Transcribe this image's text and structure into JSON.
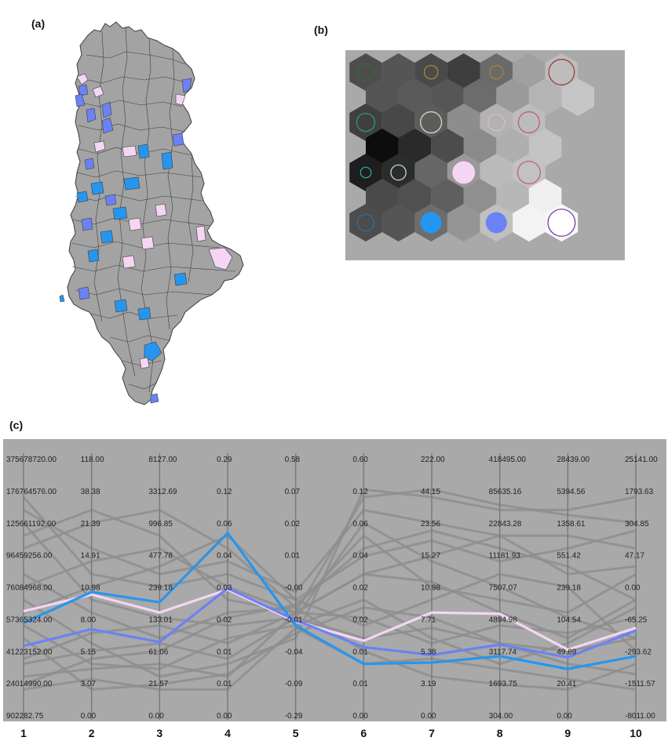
{
  "panels": {
    "a": {
      "label": "(a)"
    },
    "b": {
      "label": "(b)"
    },
    "c": {
      "label": "(c)"
    }
  },
  "colors": {
    "map_fill": "#a3a3a3",
    "map_stroke": "#3d3d3d",
    "highlight_blue": "#6b82f5",
    "highlight_cyan": "#2596f0",
    "highlight_pink": "#f4d6f4",
    "pc_background": "#a9a9a9",
    "pc_gray_line": "#8e8e8e",
    "som_background": "#a9a9a9"
  },
  "som": {
    "hexes": [
      {
        "r": 0,
        "c": 0,
        "shade": "#4d4d4d",
        "ring": "#2e6b3c",
        "ring_size": 0.55,
        "fill": null
      },
      {
        "r": 0,
        "c": 1,
        "shade": "#555555",
        "ring": null,
        "ring_size": 0,
        "fill": null
      },
      {
        "r": 0,
        "c": 2,
        "shade": "#4a4a4a",
        "ring": "#a08a3b",
        "ring_size": 0.45,
        "fill": null
      },
      {
        "r": 0,
        "c": 3,
        "shade": "#3e3e3e",
        "ring": null,
        "ring_size": 0,
        "fill": null
      },
      {
        "r": 0,
        "c": 4,
        "shade": "#6a6a6a",
        "ring": "#b07a3a",
        "ring_size": 0.45,
        "fill": null
      },
      {
        "r": 0,
        "c": 5,
        "shade": "#a0a0a0",
        "ring": null,
        "ring_size": 0,
        "fill": null
      },
      {
        "r": 0,
        "c": 6,
        "shade": "#bdbdbd",
        "ring": "#a33a3a",
        "ring_size": 0.85,
        "fill": null
      },
      {
        "r": 1,
        "c": 0,
        "shade": "#555555",
        "ring": null,
        "ring_size": 0,
        "fill": null
      },
      {
        "r": 1,
        "c": 1,
        "shade": "#5a5a5a",
        "ring": null,
        "ring_size": 0,
        "fill": null
      },
      {
        "r": 1,
        "c": 2,
        "shade": "#565656",
        "ring": null,
        "ring_size": 0,
        "fill": null
      },
      {
        "r": 1,
        "c": 3,
        "shade": "#6c6c6c",
        "ring": null,
        "ring_size": 0,
        "fill": null
      },
      {
        "r": 1,
        "c": 4,
        "shade": "#9a9a9a",
        "ring": null,
        "ring_size": 0,
        "fill": null
      },
      {
        "r": 1,
        "c": 5,
        "shade": "#b4b4b4",
        "ring": null,
        "ring_size": 0,
        "fill": null
      },
      {
        "r": 1,
        "c": 6,
        "shade": "#c6c6c6",
        "ring": null,
        "ring_size": 0,
        "fill": null
      },
      {
        "r": 2,
        "c": 0,
        "shade": "#3f3f3f",
        "ring": "#2f9a64",
        "ring_size": 0.6,
        "fill": null
      },
      {
        "r": 2,
        "c": 1,
        "shade": "#484848",
        "ring": null,
        "ring_size": 0,
        "fill": null
      },
      {
        "r": 2,
        "c": 2,
        "shade": "#5c5c5c",
        "ring": "#d8d8c0",
        "ring_size": 0.7,
        "fill": null
      },
      {
        "r": 2,
        "c": 3,
        "shade": "#8d8d8d",
        "ring": null,
        "ring_size": 0,
        "fill": null
      },
      {
        "r": 2,
        "c": 4,
        "shade": "#b2b2b2",
        "ring": "#e0b9c0",
        "ring_size": 0.55,
        "fill": null
      },
      {
        "r": 2,
        "c": 5,
        "shade": "#bcbcbc",
        "ring": "#c75a7a",
        "ring_size": 0.7,
        "fill": null
      },
      {
        "r": 3,
        "c": 0,
        "shade": "#0d0d0d",
        "ring": null,
        "ring_size": 0,
        "fill": null
      },
      {
        "r": 3,
        "c": 1,
        "shade": "#2a2a2a",
        "ring": null,
        "ring_size": 0,
        "fill": null
      },
      {
        "r": 3,
        "c": 2,
        "shade": "#4c4c4c",
        "ring": null,
        "ring_size": 0,
        "fill": null
      },
      {
        "r": 3,
        "c": 3,
        "shade": "#8a8a8a",
        "ring": null,
        "ring_size": 0,
        "fill": null
      },
      {
        "r": 3,
        "c": 4,
        "shade": "#aeaeae",
        "ring": null,
        "ring_size": 0,
        "fill": null
      },
      {
        "r": 3,
        "c": 5,
        "shade": "#c4c4c4",
        "ring": null,
        "ring_size": 0,
        "fill": null
      },
      {
        "r": 4,
        "c": 0,
        "shade": "#1e1e1e",
        "ring": "#2fa0a0",
        "ring_size": 0.35,
        "fill": null
      },
      {
        "r": 4,
        "c": 1,
        "shade": "#2c2c2c",
        "ring": "#b8e0c8",
        "ring_size": 0.5,
        "fill": null
      },
      {
        "r": 4,
        "c": 2,
        "shade": "#666666",
        "ring": null,
        "ring_size": 0,
        "fill": null
      },
      {
        "r": 4,
        "c": 3,
        "shade": "#999999",
        "ring": null,
        "ring_size": 0,
        "fill": "#f4d6f4",
        "fill_size": 0.75
      },
      {
        "r": 4,
        "c": 4,
        "shade": "#bababa",
        "ring": null,
        "ring_size": 0,
        "fill": null
      },
      {
        "r": 4,
        "c": 5,
        "shade": "#c2c2c2",
        "ring": "#c75a7a",
        "ring_size": 0.75,
        "fill": null
      },
      {
        "r": 5,
        "c": 0,
        "shade": "#4a4a4a",
        "ring": null,
        "ring_size": 0,
        "fill": null
      },
      {
        "r": 5,
        "c": 1,
        "shade": "#505050",
        "ring": null,
        "ring_size": 0,
        "fill": null
      },
      {
        "r": 5,
        "c": 2,
        "shade": "#5f5f5f",
        "ring": null,
        "ring_size": 0,
        "fill": null
      },
      {
        "r": 5,
        "c": 3,
        "shade": "#8f8f8f",
        "ring": null,
        "ring_size": 0,
        "fill": null
      },
      {
        "r": 5,
        "c": 4,
        "shade": "#b7b7b7",
        "ring": null,
        "ring_size": 0,
        "fill": null
      },
      {
        "r": 5,
        "c": 5,
        "shade": "#efefef",
        "ring": null,
        "ring_size": 0,
        "fill": null
      },
      {
        "r": 6,
        "c": 0,
        "shade": "#4c4c4c",
        "ring": "#2b6fa0",
        "ring_size": 0.55,
        "fill": null
      },
      {
        "r": 6,
        "c": 1,
        "shade": "#555555",
        "ring": null,
        "ring_size": 0,
        "fill": null
      },
      {
        "r": 6,
        "c": 2,
        "shade": "#6d6d6d",
        "ring": null,
        "ring_size": 0,
        "fill": "#2596f0",
        "fill_size": 0.7
      },
      {
        "r": 6,
        "c": 3,
        "shade": "#959595",
        "ring": null,
        "ring_size": 0,
        "fill": null
      },
      {
        "r": 6,
        "c": 4,
        "shade": "#c0c0c0",
        "ring": null,
        "ring_size": 0,
        "fill": "#6b82f5",
        "fill_size": 0.7
      },
      {
        "r": 6,
        "c": 5,
        "shade": "#f3f3f3",
        "ring": null,
        "ring_size": 0,
        "fill": null
      },
      {
        "r": 6,
        "c": 6,
        "shade": "#f8f8f8",
        "ring": "#7a3ab0",
        "ring_size": 0.9,
        "fill": "#ffffff",
        "fill_size": 0.85
      }
    ]
  },
  "chart_data": {
    "type": "parallel_coordinates",
    "axes": [
      {
        "label": "1",
        "ticks": [
          "375678720.00",
          "176764576.00",
          "125661192.00",
          "96459256.00",
          "76084968.00",
          "57365324.00",
          "41223152.00",
          "24014990.00",
          "902282.75"
        ]
      },
      {
        "label": "2",
        "ticks": [
          "118.00",
          "38.38",
          "21.39",
          "14.91",
          "10.98",
          "8.00",
          "5.15",
          "3.07",
          "0.00"
        ]
      },
      {
        "label": "3",
        "ticks": [
          "8127.00",
          "3312.69",
          "996.85",
          "477.78",
          "239.18",
          "133.01",
          "61.06",
          "21.57",
          "0.00"
        ]
      },
      {
        "label": "4",
        "ticks": [
          "0.29",
          "0.12",
          "0.06",
          "0.04",
          "0.03",
          "0.02",
          "0.01",
          "0.01",
          "0.00"
        ]
      },
      {
        "label": "5",
        "ticks": [
          "0.58",
          "0.07",
          "0.02",
          "0.01",
          "-0.00",
          "-0.01",
          "-0.04",
          "-0.09",
          "-0.29"
        ]
      },
      {
        "label": "6",
        "ticks": [
          "0.60",
          "0.12",
          "0.06",
          "0.04",
          "0.02",
          "0.02",
          "0.01",
          "0.01",
          "0.00"
        ]
      },
      {
        "label": "7",
        "ticks": [
          "222.00",
          "44.15",
          "23.56",
          "15.27",
          "10.98",
          "7.71",
          "5.38",
          "3.19",
          "0.00"
        ]
      },
      {
        "label": "8",
        "ticks": [
          "418495.00",
          "85635.16",
          "22843.28",
          "11181.93",
          "7507.07",
          "4894.98",
          "3117.74",
          "1693.75",
          "304.00"
        ]
      },
      {
        "label": "9",
        "ticks": [
          "28439.00",
          "5394.56",
          "1358.61",
          "551.42",
          "239.18",
          "104.54",
          "49.69",
          "20.41",
          "0.00"
        ]
      },
      {
        "label": "10",
        "ticks": [
          "25141.00",
          "1793.63",
          "304.85",
          "47.17",
          "0.00",
          "-65.25",
          "-293.62",
          "-1511.57",
          "-8011.00"
        ]
      }
    ],
    "quantile_scale": [
      0,
      0.125,
      0.25,
      0.375,
      0.5,
      0.625,
      0.75,
      0.875,
      1
    ],
    "highlighted_series": [
      {
        "color": "#f4d6f4",
        "values": [
          0.595,
          0.53,
          0.6,
          0.51,
          0.635,
          0.71,
          0.6,
          0.605,
          0.745,
          0.66
        ]
      },
      {
        "color": "#2596f0",
        "values": [
          0.64,
          0.52,
          0.56,
          0.29,
          0.65,
          0.8,
          0.795,
          0.77,
          0.82,
          0.77
        ]
      },
      {
        "color": "#6b82f5",
        "values": [
          0.73,
          0.665,
          0.715,
          0.505,
          0.63,
          0.735,
          0.765,
          0.725,
          0.775,
          0.67
        ]
      }
    ],
    "background_series": [
      [
        0.2,
        0.35,
        0.45,
        0.4,
        0.52,
        0.2,
        0.25,
        0.3,
        0.3,
        0.35
      ],
      [
        0.3,
        0.2,
        0.3,
        0.55,
        0.6,
        0.15,
        0.12,
        0.18,
        0.22,
        0.25
      ],
      [
        0.45,
        0.6,
        0.7,
        0.6,
        0.58,
        0.3,
        0.5,
        0.55,
        0.6,
        0.45
      ],
      [
        0.55,
        0.72,
        0.85,
        0.8,
        0.7,
        0.12,
        0.15,
        0.2,
        0.2,
        0.15
      ],
      [
        0.8,
        0.75,
        0.72,
        0.78,
        0.62,
        0.25,
        0.4,
        0.5,
        0.62,
        0.7
      ],
      [
        0.85,
        0.82,
        0.8,
        0.85,
        0.6,
        0.45,
        0.48,
        0.6,
        0.7,
        0.55
      ],
      [
        0.65,
        0.8,
        0.82,
        0.7,
        0.65,
        0.55,
        0.7,
        0.8,
        0.72,
        0.58
      ],
      [
        0.78,
        0.68,
        0.65,
        0.72,
        0.6,
        0.62,
        0.72,
        0.65,
        0.68,
        0.62
      ],
      [
        0.35,
        0.25,
        0.2,
        0.35,
        0.58,
        0.75,
        0.85,
        0.88,
        0.9,
        0.8
      ],
      [
        0.15,
        0.45,
        0.5,
        0.45,
        0.55,
        0.65,
        0.55,
        0.45,
        0.5,
        0.75
      ],
      [
        0.9,
        0.86,
        0.9,
        0.9,
        0.66,
        0.8,
        0.78,
        0.82,
        0.86,
        0.9
      ],
      [
        0.6,
        0.5,
        0.42,
        0.3,
        0.55,
        0.38,
        0.32,
        0.4,
        0.35,
        0.28
      ],
      [
        0.7,
        0.9,
        0.88,
        0.84,
        0.68,
        0.58,
        0.62,
        0.72,
        0.8,
        0.84
      ],
      [
        0.5,
        0.4,
        0.35,
        0.5,
        0.6,
        0.45,
        0.38,
        0.3,
        0.45,
        0.42
      ],
      [
        0.25,
        0.55,
        0.62,
        0.65,
        0.62,
        0.7,
        0.66,
        0.72,
        0.75,
        0.7
      ],
      [
        0.88,
        0.78,
        0.75,
        0.62,
        0.57,
        0.35,
        0.28,
        0.35,
        0.42,
        0.55
      ]
    ],
    "xlabel": "",
    "ylabel": ""
  }
}
